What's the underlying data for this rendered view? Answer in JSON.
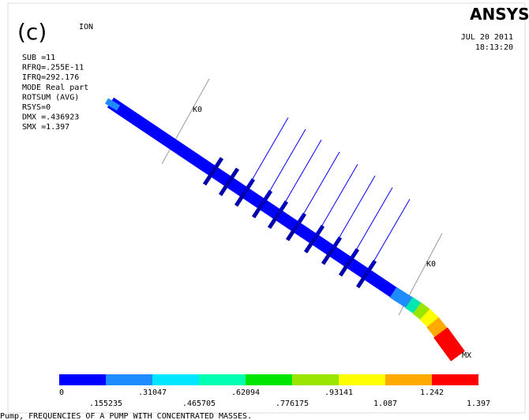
{
  "header": {
    "panel": "(c)",
    "title_fragment": "ION",
    "logo": "ANSYS",
    "date": "JUL 20 2011",
    "time": "18:13:20"
  },
  "info": [
    "SUB =11",
    "RFRQ=.255E-11",
    "IFRQ=292.176",
    "MODE Real part",
    "ROTSUM   (AVG)",
    "RSYS=0",
    "DMX =.436923",
    "SMX =1.397"
  ],
  "plot": {
    "keypoint_labels": [
      "K0",
      "K0"
    ],
    "max_label": "MX"
  },
  "legend": {
    "colors": [
      "#0000ff",
      "#1e8cff",
      "#00e6ff",
      "#00ffb0",
      "#00e600",
      "#9ae600",
      "#ffff00",
      "#ffaa00",
      "#ff0000"
    ],
    "labels": [
      "0",
      ".155235",
      ".31047",
      ".465705",
      ".62094",
      ".776175",
      ".93141",
      "1.087",
      "1.242",
      "1.397"
    ]
  },
  "footer": "Pump, FREQUENCIES OF A PUMP WITH CONCENTRATED MASSES."
}
